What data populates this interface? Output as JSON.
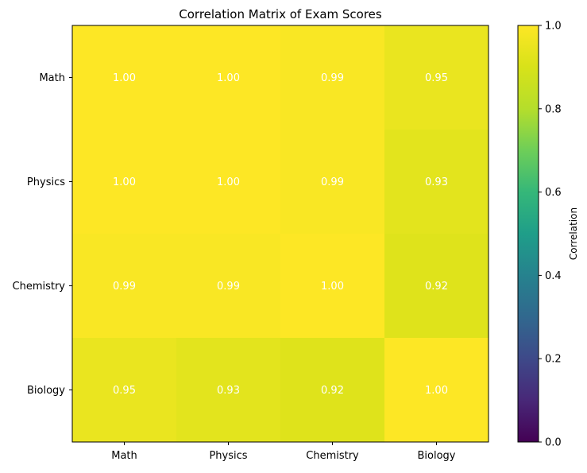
{
  "chart_data": {
    "type": "heatmap",
    "title": "Correlation Matrix of Exam Scores",
    "xlabel": "",
    "ylabel": "",
    "x_categories": [
      "Math",
      "Physics",
      "Chemistry",
      "Biology"
    ],
    "y_categories": [
      "Math",
      "Physics",
      "Chemistry",
      "Biology"
    ],
    "values": [
      [
        1.0,
        1.0,
        0.99,
        0.95
      ],
      [
        1.0,
        1.0,
        0.99,
        0.93
      ],
      [
        0.99,
        0.99,
        1.0,
        0.92
      ],
      [
        0.95,
        0.93,
        0.92,
        1.0
      ]
    ],
    "cell_label_format": "2 decimals",
    "colormap": "viridis",
    "colorbar": {
      "label": "Correlation",
      "range": [
        0.0,
        1.0
      ],
      "ticks": [
        0.0,
        0.2,
        0.4,
        0.6,
        0.8,
        1.0
      ],
      "tick_labels": [
        "0.0",
        "0.2",
        "0.4",
        "0.6",
        "0.8",
        "1.0"
      ]
    },
    "grid": false
  }
}
